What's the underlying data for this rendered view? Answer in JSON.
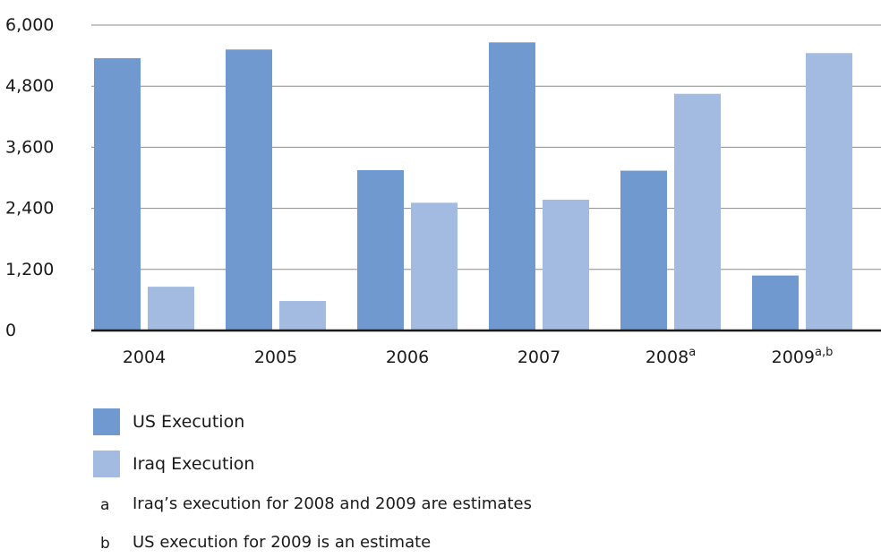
{
  "chart_data": {
    "type": "bar",
    "categories": [
      "2004",
      "2005",
      "2006",
      "2007",
      "2008",
      "2009"
    ],
    "category_superscripts": [
      "",
      "",
      "",
      "",
      "a",
      "a,b"
    ],
    "series": [
      {
        "name": "US Execution",
        "color": "#7099cf",
        "values": [
          5350,
          5520,
          3150,
          5660,
          3140,
          1080
        ]
      },
      {
        "name": "Iraq Execution",
        "color": "#a3bbe0",
        "values": [
          860,
          580,
          2510,
          2570,
          4650,
          5450
        ]
      }
    ],
    "yticks": [
      "6,000",
      "4,800",
      "3,600",
      "2,400",
      "1,200",
      "0"
    ],
    "ylim": [
      0,
      6000
    ],
    "grid": true,
    "legend_position": "bottom-left",
    "title": "",
    "xlabel": "",
    "ylabel": ""
  },
  "notes": [
    {
      "key": "a",
      "text": "Iraq’s execution for 2008 and 2009 are estimates"
    },
    {
      "key": "b",
      "text": "US execution for 2009 is an estimate"
    }
  ]
}
